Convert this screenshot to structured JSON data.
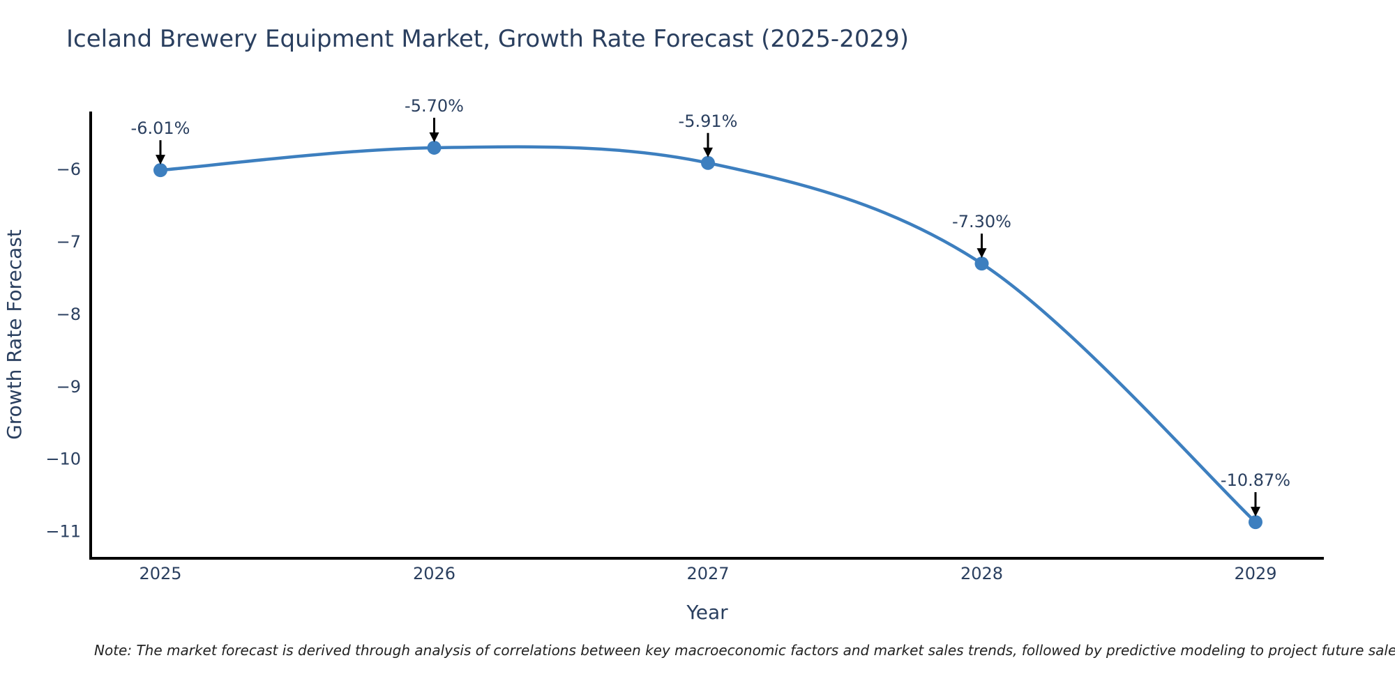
{
  "title": "Iceland Brewery Equipment Market, Growth Rate Forecast (2025-2029)",
  "note": "Note: The market forecast is derived through analysis of correlations between key macroeconomic factors and market sales trends, followed by predictive modeling to project future sales",
  "chart_data": {
    "type": "line",
    "title": "Iceland Brewery Equipment Market, Growth Rate Forecast (2025-2029)",
    "xlabel": "Year",
    "ylabel": "Growth Rate Forecast",
    "x": [
      2025,
      2026,
      2027,
      2028,
      2029
    ],
    "y": [
      -6.01,
      -5.7,
      -5.91,
      -7.3,
      -10.87
    ],
    "point_labels": [
      "-6.01%",
      "-5.70%",
      "-5.91%",
      "-7.30%",
      "-10.87%"
    ],
    "xtick_labels": [
      "2025",
      "2026",
      "2027",
      "2028",
      "2029"
    ],
    "yticks": [
      -6,
      -7,
      -8,
      -9,
      -10,
      -11
    ],
    "ytick_labels": [
      "−6",
      "−7",
      "−8",
      "−9",
      "−10",
      "−11"
    ],
    "ylim": [
      -11.36,
      -5.2
    ],
    "line_shape": "spline",
    "grid": false,
    "legend": "none",
    "marker_size": 20,
    "colors": {
      "line": "#3d7fbf",
      "marker": "#3d7fbf",
      "axis": "#000000",
      "text": "#2a3f5f",
      "annotation_arrow": "#000000",
      "note_text": "#222222",
      "background": "#ffffff"
    }
  }
}
